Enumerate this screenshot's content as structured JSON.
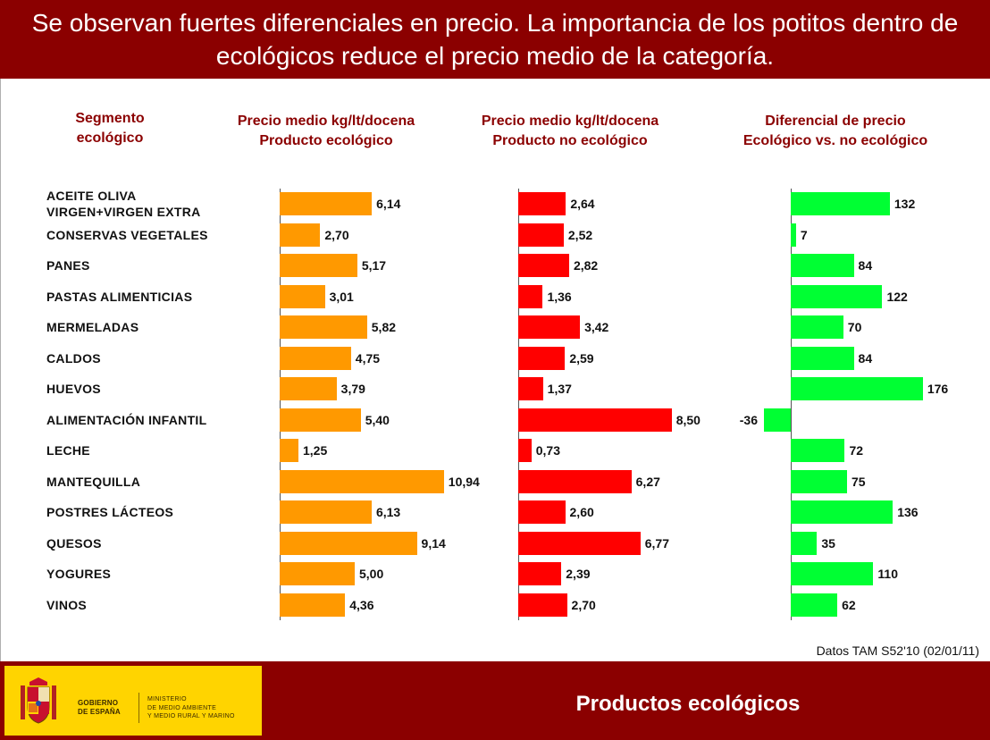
{
  "header": {
    "title": "Se observan fuertes diferenciales en precio. La importancia de los potitos dentro de ecológicos reduce el precio medio de la categoría."
  },
  "columns": {
    "segment_label_line1": "Segmento",
    "segment_label_line2": "ecológico",
    "eco_price_line1": "Precio medio kg/lt/docena",
    "eco_price_line2": "Producto ecológico",
    "noneco_price_line1": "Precio medio kg/lt/docena",
    "noneco_price_line2": "Producto no ecológico",
    "diff_line1": "Diferencial de precio",
    "diff_line2": "Ecológico vs. no ecológico"
  },
  "colors": {
    "header_bg": "#8b0000",
    "eco_bar": "#ff9900",
    "noneco_bar": "#ff0000",
    "diff_bar": "#00ff33",
    "footer_bg": "#8b0000",
    "logo_bg": "#ffd400"
  },
  "chart_data": {
    "type": "bar",
    "orientation": "horizontal",
    "categories": [
      "ACEITE OLIVA\nVIRGEN+VIRGEN EXTRA",
      "CONSERVAS VEGETALES",
      "PANES",
      "PASTAS ALIMENTICIAS",
      "MERMELADAS",
      "CALDOS",
      "HUEVOS",
      "ALIMENTACIÓN INFANTIL",
      "LECHE",
      "MANTEQUILLA",
      "POSTRES LÁCTEOS",
      "QUESOS",
      "YOGURES",
      "VINOS"
    ],
    "series": [
      {
        "values": [
          6.14,
          2.7,
          5.17,
          3.01,
          5.82,
          4.75,
          3.79,
          5.4,
          1.25,
          10.94,
          6.13,
          9.14,
          5.0,
          4.36
        ],
        "labels": [
          "6,14",
          "2,70",
          "5,17",
          "3,01",
          "5,82",
          "4,75",
          "3,79",
          "5,40",
          "1,25",
          "10,94",
          "6,13",
          "9,14",
          "5,00",
          "4,36"
        ]
      },
      {
        "values": [
          2.64,
          2.52,
          2.82,
          1.36,
          3.42,
          2.59,
          1.37,
          8.5,
          0.73,
          6.27,
          2.6,
          6.77,
          2.39,
          2.7
        ],
        "labels": [
          "2,64",
          "2,52",
          "2,82",
          "1,36",
          "3,42",
          "2,59",
          "1,37",
          "8,50",
          "0,73",
          "6,27",
          "2,60",
          "6,77",
          "2,39",
          "2,70"
        ]
      },
      {
        "values": [
          132,
          7,
          84,
          122,
          70,
          84,
          176,
          -36,
          72,
          75,
          136,
          35,
          110,
          62
        ],
        "labels": [
          "132",
          "7",
          "84",
          "122",
          "70",
          "84",
          "176",
          "-36",
          "72",
          "75",
          "136",
          "35",
          "110",
          "62"
        ]
      }
    ],
    "xlim": [
      [
        0,
        11
      ],
      [
        0,
        9
      ],
      [
        -36,
        176
      ]
    ],
    "grid": false,
    "legend": "none"
  },
  "footer": {
    "source_note": "Datos TAM S52'10 (02/01/11)",
    "logo_govt_line1": "GOBIERNO",
    "logo_govt_line2": "DE ESPAÑA",
    "logo_ministry_line1": "MINISTERIO",
    "logo_ministry_line2": "DE MEDIO AMBIENTE",
    "logo_ministry_line3": "Y MEDIO RURAL Y MARINO",
    "title": "Productos ecológicos"
  }
}
